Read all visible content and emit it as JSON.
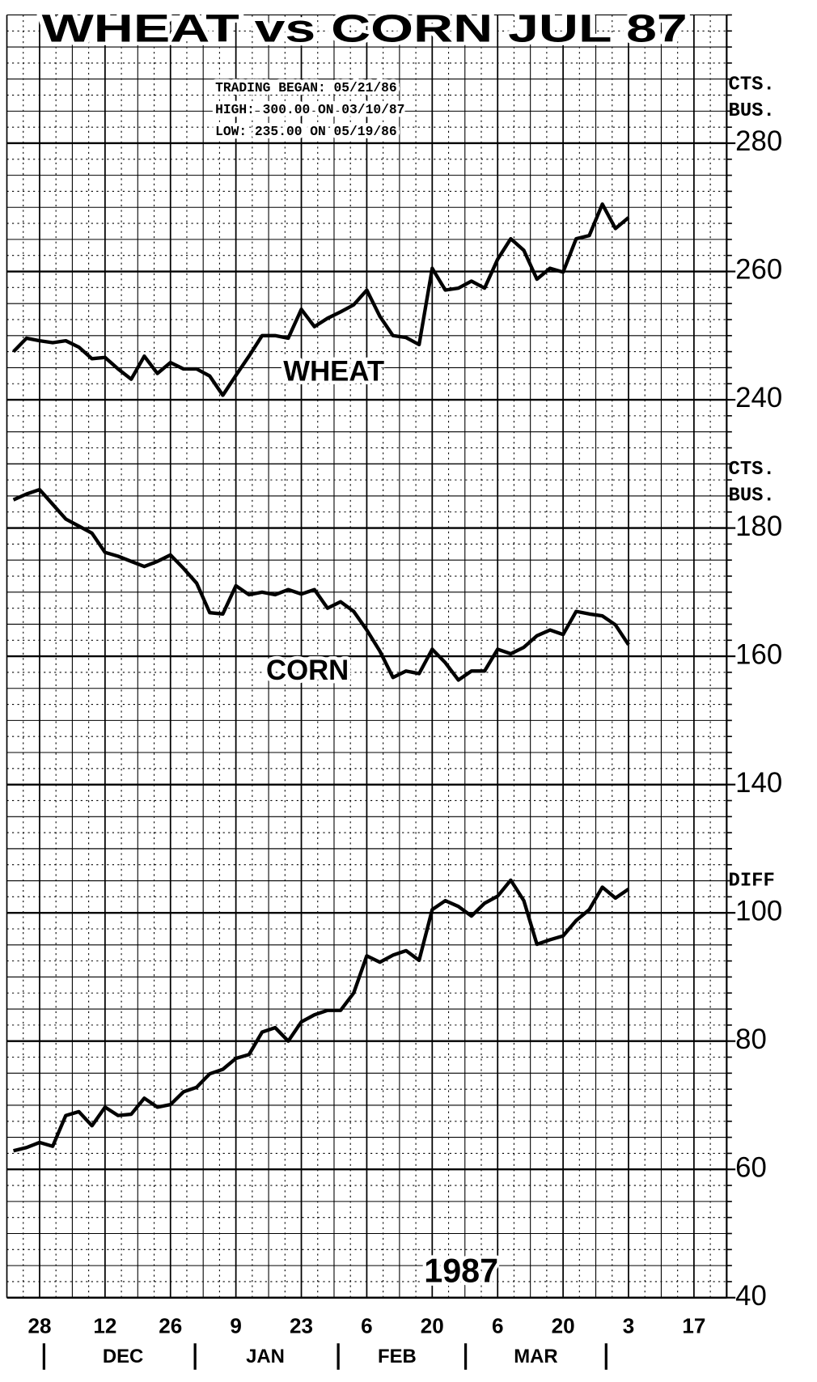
{
  "title": "WHEAT vs CORN JUL 87",
  "info_lines": [
    "TRADING BEGAN: 05/21/86",
    "HIGH: 300.00 ON 03/10/87",
    "LOW: 235.00 ON 05/19/86"
  ],
  "x_axis": {
    "categories": [
      null,
      null,
      "28",
      null,
      null,
      null,
      null,
      "12",
      null,
      null,
      null,
      null,
      "26",
      null,
      null,
      null,
      null,
      "9",
      null,
      null,
      null,
      null,
      "23",
      null,
      null,
      null,
      null,
      "6",
      null,
      null,
      null,
      null,
      "20",
      null,
      null,
      null,
      null,
      "6",
      null,
      null,
      null,
      null,
      "20",
      null,
      null,
      null,
      null,
      "3",
      null,
      null,
      null,
      null,
      "17",
      null,
      null
    ],
    "months": [
      "DEC",
      "JAN",
      "FEB",
      "MAR"
    ],
    "year": "1987"
  },
  "chart_data": [
    {
      "type": "line",
      "ylim": [
        230,
        300
      ],
      "yticks": [
        240,
        260,
        280
      ],
      "unit_label": [
        "CTS.",
        "BUS."
      ],
      "grid": true,
      "series": [
        {
          "name": "WHEAT",
          "color": "#000000",
          "values": [
            247.5,
            249.6,
            249.2,
            248.9,
            249.2,
            248.2,
            246.4,
            246.6,
            244.8,
            243.2,
            246.8,
            244.1,
            245.8,
            244.8,
            244.8,
            243.7,
            240.7,
            243.8,
            246.8,
            250.0,
            250.0,
            249.6,
            254.1,
            251.4,
            252.7,
            253.7,
            254.8,
            257.1,
            253.0,
            250.0,
            249.7,
            248.6,
            260.5,
            257.1,
            257.4,
            258.5,
            257.4,
            261.9,
            265.1,
            263.3,
            258.8,
            260.5,
            259.9,
            265.1,
            265.6,
            270.5,
            266.7,
            268.4,
            null,
            null,
            null,
            null,
            null,
            null,
            null
          ]
        }
      ]
    },
    {
      "type": "line",
      "ylim": [
        130,
        190
      ],
      "yticks": [
        140,
        160,
        180
      ],
      "unit_label": [
        "CTS.",
        "BUS."
      ],
      "grid": true,
      "series": [
        {
          "name": "CORN",
          "color": "#000000",
          "values": [
            184.4,
            185.3,
            186.0,
            183.7,
            181.4,
            180.3,
            179.2,
            176.2,
            175.6,
            174.8,
            174.0,
            174.8,
            175.8,
            173.7,
            171.4,
            166.8,
            166.6,
            171.0,
            169.6,
            170.0,
            169.6,
            170.4,
            169.7,
            170.4,
            167.5,
            168.5,
            167.0,
            164.1,
            160.8,
            156.7,
            157.7,
            157.3,
            161.1,
            159.0,
            156.3,
            157.7,
            157.7,
            161.1,
            160.4,
            161.4,
            163.2,
            164.1,
            163.4,
            167.0,
            166.6,
            166.3,
            164.9,
            161.8,
            null,
            null,
            null,
            null,
            null,
            null,
            null
          ]
        }
      ]
    },
    {
      "type": "line",
      "ylim": [
        40,
        110
      ],
      "yticks": [
        40,
        60,
        80,
        100
      ],
      "unit_label": [
        "DIFF"
      ],
      "grid": true,
      "series": [
        {
          "color": "#000000",
          "values": [
            62.9,
            63.4,
            64.2,
            63.6,
            68.4,
            69.0,
            66.8,
            69.7,
            68.4,
            68.6,
            71.1,
            69.7,
            70.1,
            72.1,
            72.8,
            74.9,
            75.6,
            77.3,
            77.9,
            81.4,
            82.1,
            80.0,
            83.0,
            84.1,
            84.8,
            84.8,
            87.5,
            93.3,
            92.3,
            93.4,
            94.1,
            92.6,
            100.5,
            101.9,
            101.0,
            99.5,
            101.5,
            102.6,
            105.1,
            101.9,
            95.1,
            95.8,
            96.4,
            98.8,
            100.5,
            104.0,
            102.3,
            103.7,
            null,
            null,
            null,
            null,
            null,
            null,
            null
          ]
        }
      ]
    }
  ]
}
